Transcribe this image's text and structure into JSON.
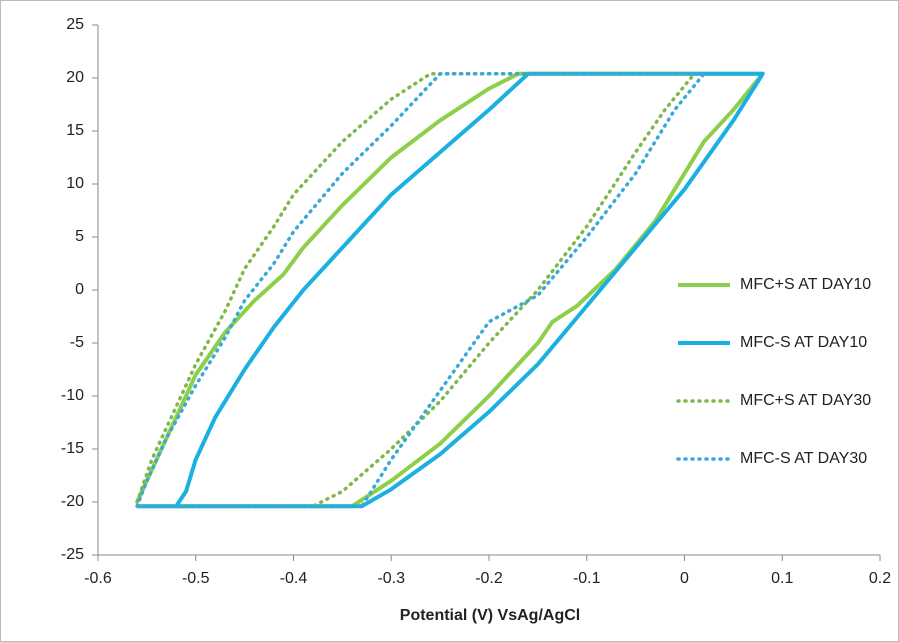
{
  "chart_data": {
    "type": "line",
    "x_label": "Potential (V) VsAg/AgCl",
    "xlim": [
      -0.6,
      0.2
    ],
    "xticks": [
      -0.6,
      -0.5,
      -0.4,
      -0.3,
      -0.2,
      -0.1,
      0,
      0.1,
      0.2
    ],
    "ylim": [
      -25,
      25
    ],
    "yticks": [
      -25,
      -20,
      -15,
      -10,
      -5,
      0,
      5,
      10,
      15,
      20,
      25
    ],
    "grid": false,
    "legend": "right",
    "series": [
      {
        "name": "MFC+S AT DAY10",
        "color": "#8dcf4a",
        "style": "solid",
        "x": [
          -0.56,
          -0.555,
          -0.54,
          -0.52,
          -0.5,
          -0.47,
          -0.44,
          -0.41,
          -0.39,
          -0.35,
          -0.3,
          -0.25,
          -0.2,
          -0.17,
          0.08,
          0.05,
          0.02,
          0,
          -0.03,
          -0.07,
          -0.11,
          -0.135,
          -0.15,
          -0.2,
          -0.25,
          -0.3,
          -0.34,
          -0.56
        ],
        "values": [
          -20,
          -19,
          -16,
          -12,
          -8,
          -4,
          -1,
          1.5,
          4,
          8,
          12.5,
          16,
          19,
          20.4,
          20.4,
          17,
          14,
          11,
          6.5,
          2,
          -1.5,
          -3,
          -5,
          -10,
          -14.5,
          -18,
          -20.4,
          -20.4
        ]
      },
      {
        "name": "MFC-S AT DAY10",
        "color": "#1ab0e0",
        "style": "solid",
        "x": [
          -0.56,
          -0.52,
          -0.51,
          -0.5,
          -0.48,
          -0.45,
          -0.42,
          -0.39,
          -0.35,
          -0.3,
          -0.25,
          -0.2,
          -0.16,
          0.08,
          0.05,
          0,
          -0.05,
          -0.1,
          -0.15,
          -0.2,
          -0.25,
          -0.3,
          -0.33,
          -0.35,
          -0.56
        ],
        "values": [
          -20.4,
          -20.4,
          -19,
          -16,
          -12,
          -7.5,
          -3.5,
          0,
          4,
          9,
          13,
          17,
          20.4,
          20.4,
          16,
          9.5,
          4,
          -1.5,
          -7,
          -11.5,
          -15.5,
          -18.8,
          -20.4,
          -20.4,
          -20.4
        ]
      },
      {
        "name": "MFC+S AT DAY30",
        "color": "#7fb84a",
        "style": "dotted",
        "x": [
          -0.56,
          -0.545,
          -0.52,
          -0.5,
          -0.47,
          -0.45,
          -0.42,
          -0.4,
          -0.35,
          -0.3,
          -0.26,
          0.01,
          -0.02,
          -0.05,
          -0.1,
          -0.15,
          -0.2,
          -0.25,
          -0.3,
          -0.35,
          -0.38,
          -0.56
        ],
        "values": [
          -20,
          -16,
          -11,
          -7,
          -2,
          2,
          6,
          9,
          14,
          18,
          20.4,
          20.4,
          17,
          13,
          6,
          0,
          -5,
          -10.5,
          -15,
          -19,
          -20.4,
          -20.4
        ]
      },
      {
        "name": "MFC-S AT DAY30",
        "color": "#3aa8d8",
        "style": "dotted",
        "x": [
          -0.56,
          -0.55,
          -0.53,
          -0.5,
          -0.47,
          -0.45,
          -0.42,
          -0.4,
          -0.35,
          -0.3,
          -0.25,
          0.02,
          -0.01,
          -0.05,
          -0.1,
          -0.15,
          -0.2,
          -0.25,
          -0.3,
          -0.33,
          -0.56
        ],
        "values": [
          -20.4,
          -18,
          -14,
          -9,
          -4.5,
          -1,
          2.5,
          5.5,
          11,
          15.5,
          20.4,
          20.4,
          17,
          11,
          5,
          -0.5,
          -3,
          -9.5,
          -16,
          -20.4,
          -20.4
        ]
      }
    ]
  }
}
